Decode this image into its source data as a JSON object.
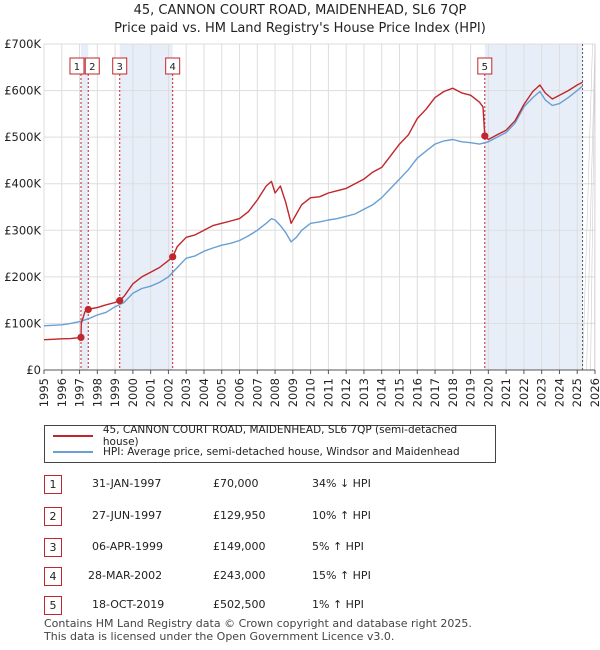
{
  "title_line1": "45, CANNON COURT ROAD, MAIDENHEAD, SL6 7QP",
  "title_line2": "Price paid vs. HM Land Registry's House Price Index (HPI)",
  "colors": {
    "price": "#c0262b",
    "hpi": "#6a9fd4",
    "shade": "#e8eef8"
  },
  "chart_data": {
    "type": "line",
    "title": "45, CANNON COURT ROAD, MAIDENHEAD, SL6 7QP — Price paid vs. HM Land Registry's House Price Index (HPI)",
    "xlabel": "",
    "ylabel": "",
    "xlim": [
      1995,
      2026
    ],
    "ylim": [
      0,
      700000
    ],
    "x_ticks": [
      "1995",
      "1996",
      "1997",
      "1998",
      "1999",
      "2000",
      "2001",
      "2002",
      "2003",
      "2004",
      "2005",
      "2006",
      "2007",
      "2008",
      "2009",
      "2010",
      "2011",
      "2012",
      "2013",
      "2014",
      "2015",
      "2016",
      "2017",
      "2018",
      "2019",
      "2020",
      "2021",
      "2022",
      "2023",
      "2024",
      "2025",
      "2026"
    ],
    "y_ticks": [
      {
        "value": 0,
        "label": "£0"
      },
      {
        "value": 100000,
        "label": "£100K"
      },
      {
        "value": 200000,
        "label": "£200K"
      },
      {
        "value": 300000,
        "label": "£300K"
      },
      {
        "value": 400000,
        "label": "£400K"
      },
      {
        "value": 500000,
        "label": "£500K"
      },
      {
        "value": 600000,
        "label": "£600K"
      },
      {
        "value": 700000,
        "label": "£700K"
      }
    ],
    "grid": true,
    "shaded_periods": [
      [
        1997.08,
        1997.49
      ],
      [
        1999.26,
        2002.24
      ],
      [
        2019.8,
        2025.3
      ]
    ],
    "series": [
      {
        "name": "45, CANNON COURT ROAD, MAIDENHEAD, SL6 7QP (semi-detached house)",
        "color": "#c0262b",
        "x": [
          1995.0,
          1995.5,
          1996.0,
          1996.5,
          1997.08,
          1997.1,
          1997.3,
          1997.49,
          1997.7,
          1998.0,
          1998.5,
          1999.0,
          1999.26,
          1999.5,
          2000.0,
          2000.5,
          2001.0,
          2001.5,
          2002.0,
          2002.24,
          2002.5,
          2003.0,
          2003.5,
          2004.0,
          2004.5,
          2005.0,
          2005.5,
          2006.0,
          2006.5,
          2007.0,
          2007.5,
          2007.8,
          2008.0,
          2008.3,
          2008.6,
          2008.9,
          2009.2,
          2009.5,
          2010.0,
          2010.5,
          2011.0,
          2011.5,
          2012.0,
          2012.5,
          2013.0,
          2013.5,
          2014.0,
          2014.5,
          2015.0,
          2015.5,
          2016.0,
          2016.5,
          2017.0,
          2017.5,
          2018.0,
          2018.5,
          2019.0,
          2019.5,
          2019.7,
          2019.8,
          2020.0,
          2020.5,
          2021.0,
          2021.5,
          2022.0,
          2022.5,
          2022.9,
          2023.2,
          2023.6,
          2024.0,
          2024.5,
          2025.0,
          2025.3
        ],
        "values": [
          65000,
          66000,
          67000,
          67500,
          70000,
          100000,
          125000,
          129950,
          132000,
          134000,
          140000,
          145000,
          149000,
          158000,
          185000,
          200000,
          210000,
          220000,
          235000,
          243000,
          265000,
          285000,
          290000,
          300000,
          310000,
          315000,
          320000,
          325000,
          340000,
          365000,
          395000,
          405000,
          380000,
          395000,
          360000,
          315000,
          335000,
          355000,
          370000,
          372000,
          380000,
          385000,
          390000,
          400000,
          410000,
          425000,
          435000,
          460000,
          485000,
          505000,
          540000,
          560000,
          585000,
          598000,
          605000,
          595000,
          590000,
          575000,
          565000,
          502500,
          495000,
          505000,
          515000,
          535000,
          570000,
          598000,
          612000,
          595000,
          582000,
          590000,
          600000,
          612000,
          618000
        ]
      },
      {
        "name": "HPI: Average price, semi-detached house, Windsor and Maidenhead",
        "color": "#6a9fd4",
        "x": [
          1995.0,
          1995.5,
          1996.0,
          1996.5,
          1997.0,
          1997.5,
          1998.0,
          1998.5,
          1999.0,
          1999.5,
          2000.0,
          2000.5,
          2001.0,
          2001.5,
          2002.0,
          2002.5,
          2003.0,
          2003.5,
          2004.0,
          2004.5,
          2005.0,
          2005.5,
          2006.0,
          2006.5,
          2007.0,
          2007.5,
          2007.8,
          2008.0,
          2008.3,
          2008.6,
          2008.9,
          2009.2,
          2009.5,
          2010.0,
          2010.5,
          2011.0,
          2011.5,
          2012.0,
          2012.5,
          2013.0,
          2013.5,
          2014.0,
          2014.5,
          2015.0,
          2015.5,
          2016.0,
          2016.5,
          2017.0,
          2017.5,
          2018.0,
          2018.5,
          2019.0,
          2019.5,
          2020.0,
          2020.5,
          2021.0,
          2021.5,
          2022.0,
          2022.5,
          2022.9,
          2023.2,
          2023.6,
          2024.0,
          2024.5,
          2025.0,
          2025.3
        ],
        "values": [
          95000,
          96000,
          97000,
          100000,
          104000,
          110000,
          118000,
          124000,
          136000,
          145000,
          165000,
          175000,
          180000,
          188000,
          200000,
          220000,
          240000,
          245000,
          255000,
          262000,
          268000,
          272000,
          278000,
          288000,
          300000,
          315000,
          325000,
          322000,
          310000,
          295000,
          275000,
          285000,
          300000,
          315000,
          318000,
          322000,
          325000,
          330000,
          335000,
          345000,
          355000,
          370000,
          390000,
          410000,
          430000,
          455000,
          470000,
          485000,
          492000,
          495000,
          490000,
          488000,
          485000,
          490000,
          500000,
          510000,
          530000,
          565000,
          585000,
          598000,
          580000,
          568000,
          572000,
          585000,
          600000,
          610000
        ]
      }
    ],
    "transactions": [
      {
        "n": "1",
        "x": 1997.08,
        "price": 70000
      },
      {
        "n": "2",
        "x": 1997.49,
        "price": 129950
      },
      {
        "n": "3",
        "x": 1999.26,
        "price": 149000
      },
      {
        "n": "4",
        "x": 2002.24,
        "price": 243000
      },
      {
        "n": "5",
        "x": 2019.8,
        "price": 502500
      }
    ]
  },
  "legend": {
    "series1": "45, CANNON COURT ROAD, MAIDENHEAD, SL6 7QP (semi-detached house)",
    "series2": "HPI: Average price, semi-detached house, Windsor and Maidenhead"
  },
  "table": [
    {
      "n": "1",
      "date": "31-JAN-1997",
      "price": "£70,000",
      "hpi": "34% ↓ HPI"
    },
    {
      "n": "2",
      "date": "27-JUN-1997",
      "price": "£129,950",
      "hpi": "10% ↑ HPI"
    },
    {
      "n": "3",
      "date": "06-APR-1999",
      "price": "£149,000",
      "hpi": "5% ↑ HPI"
    },
    {
      "n": "4",
      "date": "28-MAR-2002",
      "price": "£243,000",
      "hpi": "15% ↑ HPI"
    },
    {
      "n": "5",
      "date": "18-OCT-2019",
      "price": "£502,500",
      "hpi": "1% ↑ HPI"
    }
  ],
  "footer": {
    "line1": "Contains HM Land Registry data © Crown copyright and database right 2025.",
    "line2": "This data is licensed under the Open Government Licence v3.0."
  }
}
